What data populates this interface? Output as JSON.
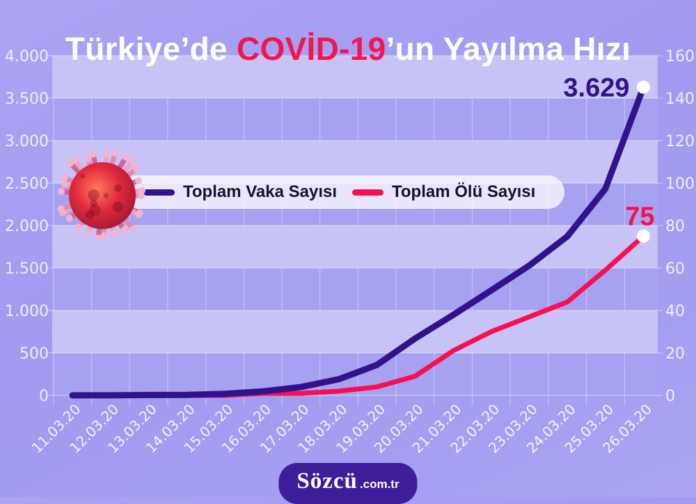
{
  "title": {
    "prefix": "Türkiye’de ",
    "highlight": "COVİD-19",
    "suffix": "’un Yayılma Hızı"
  },
  "legend": {
    "items": [
      {
        "label": "Toplam Vaka Sayısı",
        "color": "#32128c"
      },
      {
        "label": "Toplam Ölü Sayısı",
        "color": "#f80f52"
      }
    ]
  },
  "chart_data": {
    "type": "line",
    "x": [
      "11.03.20",
      "12.03.20",
      "13.03.20",
      "14.03.20",
      "15.03.20",
      "16.03.20",
      "17.03.20",
      "18.03.20",
      "19.03.20",
      "20.03.20",
      "21.03.20",
      "22.03.20",
      "23.03.20",
      "24.03.20",
      "25.03.20",
      "26.03.20"
    ],
    "series": [
      {
        "name": "Toplam Vaka Sayısı",
        "axis": "left",
        "color": "#32128c",
        "values": [
          1,
          1,
          5,
          6,
          18,
          47,
          98,
          191,
          359,
          670,
          947,
          1236,
          1529,
          1872,
          2433,
          3629
        ],
        "end_label": "3.629"
      },
      {
        "name": "Toplam Ölü Sayısı",
        "axis": "right",
        "color": "#f80f52",
        "values": [
          0,
          0,
          0,
          0,
          0,
          1,
          1,
          2,
          4,
          9,
          21,
          30,
          37,
          44,
          59,
          75
        ],
        "end_label": "75"
      }
    ],
    "left_axis": {
      "range": [
        0,
        4000
      ],
      "step": 500,
      "tick_labels": [
        "4.000",
        "3.500",
        "3.000",
        "2.500",
        "2.000",
        "1.500",
        "1.000",
        "500",
        "0"
      ]
    },
    "right_axis": {
      "range": [
        0,
        160
      ],
      "step": 20,
      "tick_labels": [
        "160",
        "140",
        "120",
        "100",
        "80",
        "60",
        "40",
        "20",
        "0"
      ]
    },
    "grid": "banded-rows",
    "legend_position": "inside-top-left"
  },
  "branding": {
    "logo_main": "Sözcü",
    "logo_suffix": ".com.tr"
  },
  "theme": {
    "background": "#a29bf0",
    "row_dark": "#a7a1f1",
    "row_light": "#c7c3f6",
    "grid_line": "rgba(255,255,255,0.42)",
    "column_line": "rgba(255,255,255,0.32)",
    "axis_text": "#efedfc",
    "date_text": "rgba(255,255,255,0.88)",
    "title_text": "#ffffff",
    "title_highlight": "#f21550",
    "legend_bg": "rgba(250,248,255,0.8)",
    "legend_text": "#16102f",
    "end_dot": "#ffffff",
    "logo_bg": "#3d1d99",
    "logo_text": "#ffffff",
    "virus_core_light": "#ff7a5e",
    "virus_core": "#e02a3c",
    "virus_core_dark": "#8f1330",
    "virus_spikes": [
      "#e089b5",
      "#cf6697",
      "#eba4c6"
    ],
    "virus_tip": "#f2b3cf"
  }
}
